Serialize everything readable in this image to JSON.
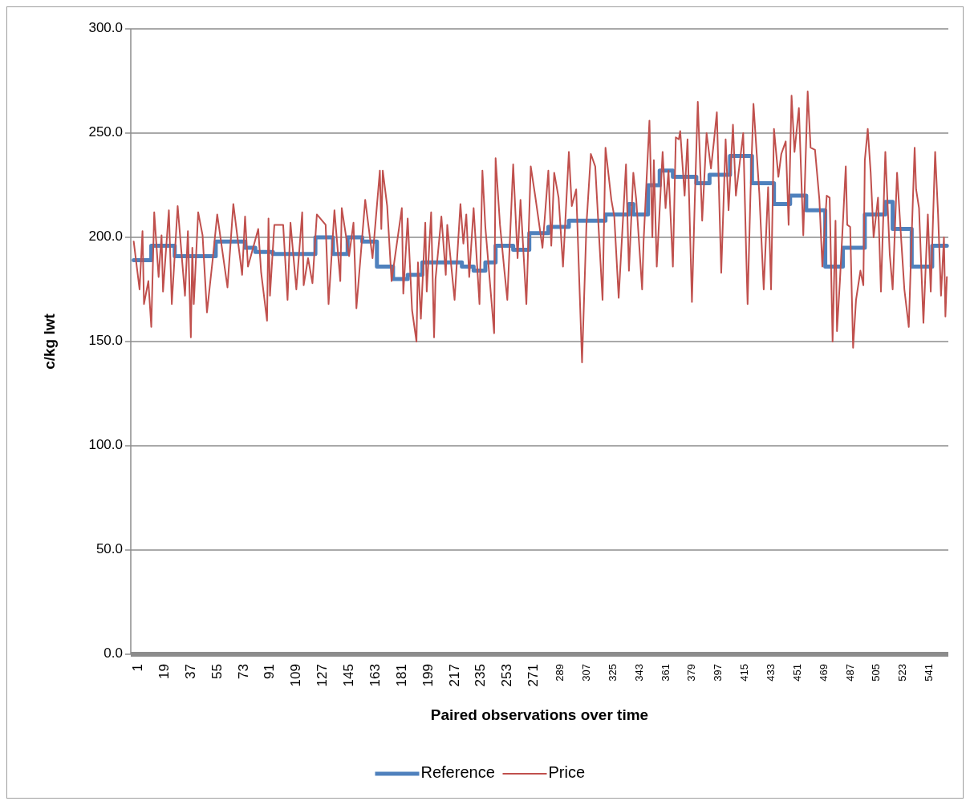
{
  "chart_data": {
    "type": "line",
    "xlabel": "Paired observations over time",
    "ylabel": "c/kg lwt",
    "xlim": [
      -1,
      557
    ],
    "xticks": [
      1,
      19,
      37,
      55,
      73,
      91,
      109,
      127,
      145,
      163,
      181,
      199,
      217,
      235,
      253,
      271,
      289,
      307,
      325,
      343,
      361,
      379,
      397,
      415,
      433,
      451,
      469,
      487,
      505,
      523,
      541
    ],
    "ylim": [
      0,
      300
    ],
    "yticks": [
      {
        "value": 0,
        "label": "0.0"
      },
      {
        "value": 50,
        "label": "50.0"
      },
      {
        "value": 100,
        "label": "100.0"
      },
      {
        "value": 150,
        "label": "150.0"
      },
      {
        "value": 200,
        "label": "200.0"
      },
      {
        "value": 250,
        "label": "250.0"
      },
      {
        "value": 300,
        "label": "300.0"
      }
    ],
    "grid": "y",
    "legend": "bottom",
    "marker": "none",
    "series": [
      {
        "name": "Reference",
        "type": "step",
        "color": "#4f81bd",
        "x": [
          1,
          13,
          29,
          57,
          77,
          84,
          96,
          125,
          137,
          147,
          157,
          167,
          178,
          188,
          198,
          225,
          233,
          241,
          248,
          260,
          271,
          284,
          298,
          323,
          339,
          342,
          352,
          360,
          369,
          385,
          394,
          408,
          423,
          438,
          449,
          460,
          473,
          485,
          500,
          514,
          519,
          532,
          546,
          556
        ],
        "values": [
          189,
          196,
          191,
          198,
          195,
          193,
          192,
          200,
          192,
          200,
          198,
          186,
          180,
          182,
          188,
          186,
          184,
          188,
          196,
          194,
          202,
          205,
          208,
          211,
          216,
          211,
          225,
          232,
          229,
          226,
          230,
          239,
          226,
          216,
          220,
          213,
          186,
          195,
          211,
          217,
          204,
          186,
          196,
          196
        ]
      },
      {
        "name": "Price",
        "color": "#c0504d",
        "x": [
          1,
          5,
          7,
          8,
          11,
          13,
          15,
          18,
          20,
          21,
          25,
          27,
          31,
          36,
          38,
          40,
          41,
          42,
          45,
          48,
          51,
          55,
          58,
          65,
          69,
          75,
          77,
          79,
          86,
          88,
          92,
          93,
          94,
          97,
          103,
          106,
          108,
          112,
          116,
          117,
          120,
          123,
          126,
          132,
          134,
          138,
          142,
          143,
          148,
          151,
          153,
          159,
          164,
          169,
          170,
          171,
          174,
          177,
          184,
          185,
          188,
          191,
          194,
          195,
          197,
          200,
          201,
          204,
          206,
          207,
          211,
          214,
          215,
          220,
          224,
          226,
          228,
          230,
          233,
          237,
          239,
          241,
          247,
          248,
          251,
          254,
          256,
          260,
          263,
          265,
          269,
          272,
          275,
          280,
          284,
          286,
          288,
          291,
          294,
          298,
          300,
          303,
          307,
          310,
          313,
          316,
          321,
          323,
          327,
          329,
          332,
          337,
          339,
          342,
          344,
          348,
          349,
          353,
          355,
          356,
          358,
          362,
          364,
          366,
          369,
          371,
          373,
          374,
          377,
          379,
          382,
          384,
          386,
          389,
          392,
          395,
          397,
          399,
          402,
          405,
          407,
          410,
          412,
          417,
          419,
          420,
          422,
          424,
          428,
          431,
          434,
          436,
          438,
          441,
          443,
          446,
          448,
          450,
          452,
          455,
          458,
          461,
          463,
          466,
          469,
          471,
          474,
          476,
          478,
          480,
          481,
          483,
          487,
          488,
          490,
          492,
          494,
          497,
          499,
          500,
          502,
          504,
          506,
          509,
          511,
          514,
          517,
          519,
          522,
          525,
          527,
          530,
          532,
          534,
          535,
          537,
          540,
          543,
          545,
          548,
          550,
          552,
          554,
          555,
          556
        ],
        "values": [
          198,
          175,
          203,
          168,
          179,
          157,
          212,
          181,
          201,
          174,
          213,
          168,
          215,
          172,
          203,
          152,
          195,
          168,
          212,
          201,
          164,
          190,
          211,
          176,
          216,
          182,
          210,
          186,
          204,
          183,
          160,
          209,
          172,
          206,
          206,
          170,
          207,
          175,
          212,
          177,
          190,
          178,
          211,
          206,
          168,
          213,
          179,
          214,
          191,
          207,
          166,
          218,
          190,
          232,
          204,
          232,
          215,
          179,
          214,
          173,
          209,
          165,
          150,
          188,
          161,
          207,
          174,
          212,
          152,
          180,
          210,
          182,
          206,
          170,
          216,
          197,
          211,
          181,
          214,
          168,
          232,
          205,
          154,
          238,
          206,
          184,
          170,
          235,
          190,
          218,
          168,
          234,
          220,
          195,
          232,
          196,
          231,
          219,
          186,
          241,
          215,
          223,
          140,
          206,
          240,
          234,
          170,
          243,
          218,
          210,
          171,
          235,
          184,
          231,
          218,
          175,
          198,
          256,
          200,
          237,
          186,
          241,
          214,
          232,
          186,
          248,
          247,
          251,
          220,
          247,
          169,
          219,
          265,
          208,
          250,
          233,
          246,
          260,
          183,
          247,
          213,
          254,
          220,
          250,
          193,
          168,
          222,
          264,
          221,
          175,
          224,
          175,
          252,
          229,
          240,
          246,
          206,
          268,
          241,
          262,
          201,
          270,
          243,
          242,
          218,
          186,
          220,
          219,
          150,
          208,
          155,
          179,
          234,
          206,
          205,
          147,
          170,
          184,
          177,
          237,
          252,
          231,
          200,
          219,
          174,
          241,
          192,
          175,
          231,
          197,
          175,
          157,
          201,
          243,
          223,
          214,
          159,
          211,
          174,
          241,
          211,
          172,
          200,
          162,
          181
        ]
      }
    ]
  }
}
